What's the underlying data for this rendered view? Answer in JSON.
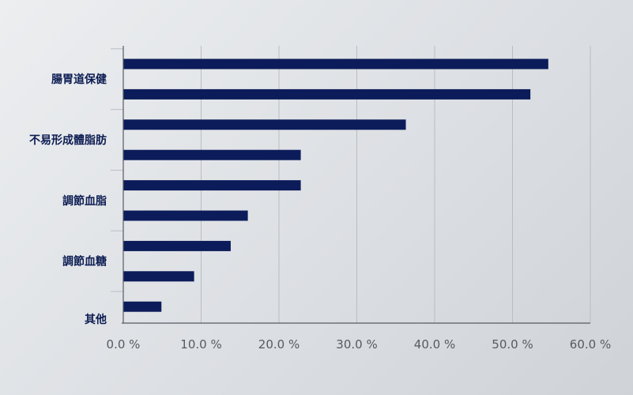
{
  "chart_data": {
    "type": "bar",
    "orientation": "horizontal",
    "title": "",
    "xlabel": "",
    "ylabel": "",
    "categories": [
      "腸胃道保健",
      "不易形成體脂肪",
      "調節血脂",
      "調節血糖",
      "其他"
    ],
    "bars": [
      {
        "category": "腸胃道保健",
        "value": 54.6
      },
      {
        "category": "腸胃道保健",
        "value": 52.3
      },
      {
        "category": "不易形成體脂肪",
        "value": 36.3
      },
      {
        "category": "不易形成體脂肪",
        "value": 22.8
      },
      {
        "category": "調節血脂",
        "value": 22.8
      },
      {
        "category": "調節血脂",
        "value": 16.0
      },
      {
        "category": "調節血糖",
        "value": 13.8
      },
      {
        "category": "調節血糖",
        "value": 9.1
      },
      {
        "category": "其他",
        "value": 4.9
      }
    ],
    "xlim": [
      0,
      60
    ],
    "xticks": [
      0,
      10,
      20,
      30,
      40,
      50,
      60
    ],
    "xtick_labels": [
      "0.0 %",
      "10.0 %",
      "20.0 %",
      "30.0 %",
      "40.0 %",
      "50.0 %",
      "60.0 %"
    ],
    "grid": true,
    "legend": "none",
    "colors": {
      "bar": "#0c1c5a",
      "label": "#0c1c52",
      "tick": "#555b63",
      "grid": "#b9bdc3",
      "axis": "#555b63"
    }
  }
}
